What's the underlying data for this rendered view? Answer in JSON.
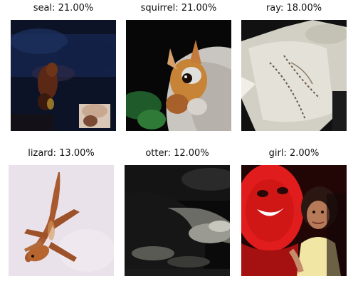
{
  "grid": {
    "items": [
      {
        "caption": "seal: 21.00%"
      },
      {
        "caption": "squirrel: 21.00%"
      },
      {
        "caption": "ray: 18.00%"
      },
      {
        "caption": "lizard: 13.00%"
      },
      {
        "caption": "otter: 12.00%"
      },
      {
        "caption": "girl: 2.00%"
      }
    ]
  }
}
